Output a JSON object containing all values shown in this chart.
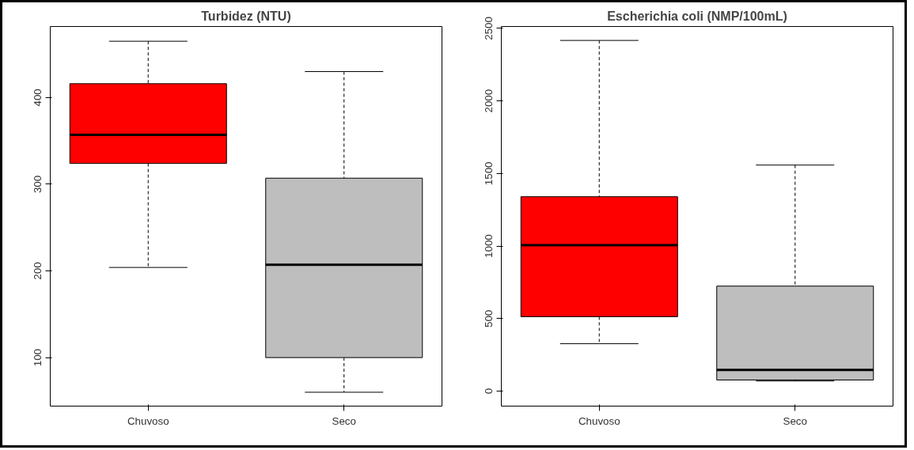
{
  "chart_data": [
    {
      "type": "box",
      "title": "Turbidez (NTU)",
      "categories": [
        "Chuvoso",
        "Seco"
      ],
      "colors": [
        "#ff0000",
        "#bebebe"
      ],
      "boxes": [
        {
          "low": 204,
          "q1": 324,
          "median": 357,
          "q3": 416,
          "high": 465
        },
        {
          "low": 60,
          "q1": 100,
          "median": 207,
          "q3": 307,
          "high": 430
        }
      ],
      "ylim": [
        44,
        482
      ],
      "yticks": [
        100,
        200,
        300,
        400
      ]
    },
    {
      "type": "box",
      "title": "Escherichia coli (NMP/100mL)",
      "categories": [
        "Chuvoso",
        "Seco"
      ],
      "colors": [
        "#ff0000",
        "#bebebe"
      ],
      "boxes": [
        {
          "low": 327,
          "q1": 513,
          "median": 1006,
          "q3": 1340,
          "high": 2417
        },
        {
          "low": 70,
          "q1": 77,
          "median": 147,
          "q3": 724,
          "high": 1558
        }
      ],
      "ylim": [
        -103,
        2513
      ],
      "yticks": [
        0,
        500,
        1000,
        1500,
        2000,
        2500
      ]
    }
  ]
}
